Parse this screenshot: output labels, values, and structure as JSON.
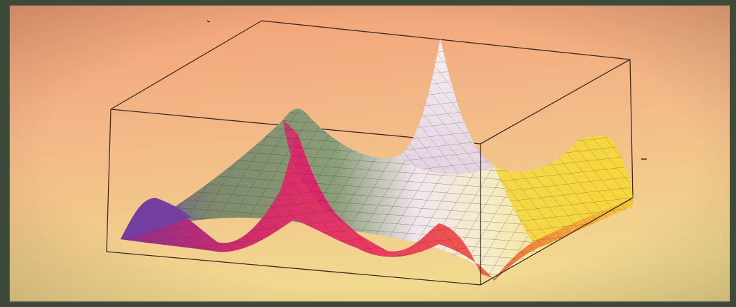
{
  "scene": {
    "subject": "3d-surface-plot-photo",
    "colors": {
      "frame": "#3c4a3a",
      "background_top": "#f2a47a",
      "background_bottom": "#f0d88c",
      "box_line": "#3b2a22",
      "surface_violet": "#7b4aa8",
      "surface_magenta": "#e0306e",
      "surface_green": "#7f9a72",
      "surface_white": "#efe6f0",
      "surface_yellow": "#f7dc3a",
      "mesh_line": "#3a2e2a"
    }
  }
}
